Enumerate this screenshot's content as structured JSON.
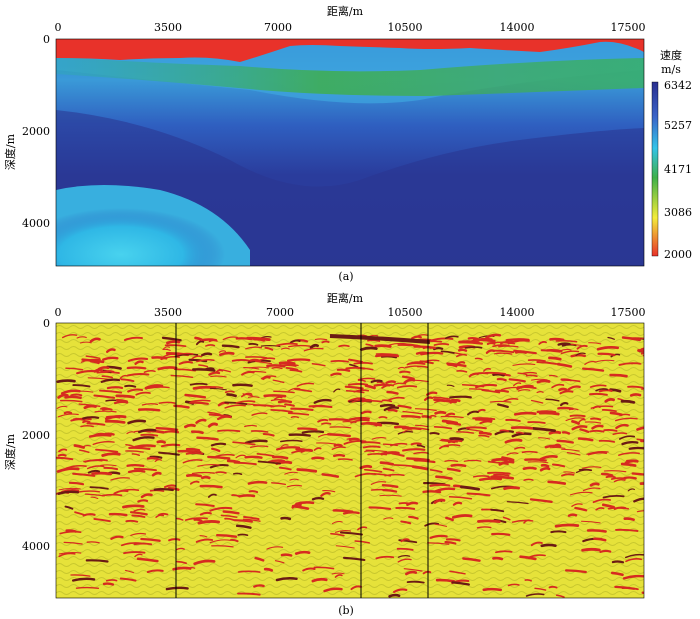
{
  "panel_a": {
    "caption": "(a)",
    "x_axis_title": "距离/m",
    "x_ticks": [
      "0",
      "3500",
      "7000",
      "10500",
      "14000",
      "17500"
    ],
    "y_axis_title": "深度/m",
    "y_ticks": [
      "0",
      "2000",
      "4000"
    ],
    "colorbar": {
      "title_line1": "速度",
      "title_line2": "m/s",
      "ticks": [
        "6342",
        "5257",
        "4171",
        "3086",
        "2000"
      ],
      "colors": [
        "#2a2f8f",
        "#3b64c8",
        "#35c3e8",
        "#3fb04a",
        "#f3ec3a",
        "#e8322a"
      ]
    }
  },
  "panel_b": {
    "caption": "(b)",
    "x_axis_title": "距离/m",
    "x_ticks": [
      "0",
      "3500",
      "7000",
      "10500",
      "14000",
      "17500"
    ],
    "y_axis_title": "深度/m",
    "y_ticks": [
      "0",
      "2000",
      "4000"
    ],
    "colors": {
      "background": "#e6e23a",
      "reflector": "#d62a20",
      "marker_line": "#000000"
    }
  }
}
